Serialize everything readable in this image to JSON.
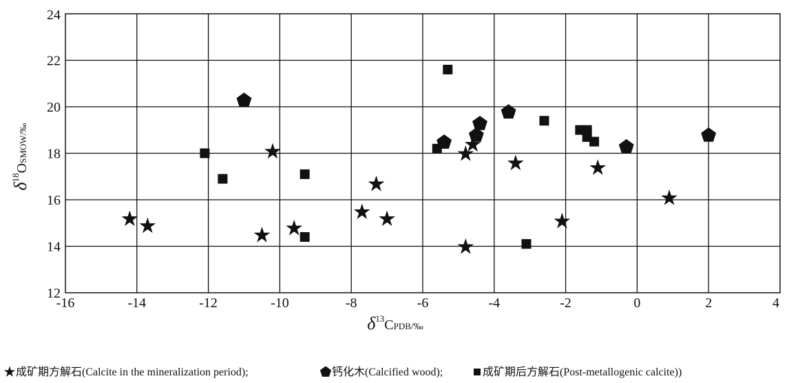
{
  "chart_data": {
    "type": "scatter",
    "x_axis": {
      "min": -16,
      "max": 4,
      "ticks": [
        -16,
        -14,
        -12,
        -10,
        -8,
        -6,
        -4,
        -2,
        0,
        2,
        4
      ],
      "tick_labels": [
        "-16",
        "-14",
        "-12",
        "-10",
        "-8",
        "-6",
        "-4",
        "-2",
        "0",
        "2",
        "4"
      ],
      "label_symbol": "δ",
      "label_sup": "13",
      "label_main": "C",
      "label_sub": "PDB",
      "label_suffix": "/‰"
    },
    "y_axis": {
      "min": 12,
      "max": 24,
      "ticks": [
        12,
        14,
        16,
        18,
        20,
        22,
        24
      ],
      "tick_labels": [
        "12",
        "14",
        "16",
        "18",
        "20",
        "22",
        "24"
      ],
      "label_symbol": "δ",
      "label_sup": "18",
      "label_main": "O",
      "label_sub": "SMOW",
      "label_suffix": "/‰"
    },
    "grid": true,
    "series": [
      {
        "name": "成矿期方解石(Calcite in the mineralization period)",
        "marker": "star",
        "color": "#111111",
        "points": [
          [
            -14.2,
            15.2
          ],
          [
            -13.7,
            14.9
          ],
          [
            -10.5,
            14.5
          ],
          [
            -10.2,
            18.1
          ],
          [
            -9.6,
            14.8
          ],
          [
            -7.7,
            15.5
          ],
          [
            -7.3,
            16.7
          ],
          [
            -7.0,
            15.2
          ],
          [
            -4.8,
            18.0
          ],
          [
            -4.8,
            14.0
          ],
          [
            -4.6,
            18.4
          ],
          [
            -3.4,
            17.6
          ],
          [
            -2.1,
            15.1
          ],
          [
            -1.1,
            17.4
          ],
          [
            0.9,
            16.1
          ]
        ]
      },
      {
        "name": "钙化木(Calcified wood)",
        "marker": "pentagon",
        "color": "#111111",
        "points": [
          [
            -11.0,
            20.3
          ],
          [
            -5.4,
            18.5
          ],
          [
            -4.5,
            18.8
          ],
          [
            -4.4,
            19.3
          ],
          [
            -3.6,
            19.8
          ],
          [
            -0.3,
            18.3
          ],
          [
            2.0,
            18.8
          ]
        ]
      },
      {
        "name": "成矿期后方解石(Post-metallogenic calcite)",
        "marker": "square",
        "color": "#111111",
        "points": [
          [
            -12.1,
            18.0
          ],
          [
            -11.6,
            16.9
          ],
          [
            -9.3,
            17.1
          ],
          [
            -9.3,
            14.4
          ],
          [
            -5.6,
            18.2
          ],
          [
            -5.3,
            21.6
          ],
          [
            -3.1,
            14.1
          ],
          [
            -2.6,
            19.4
          ],
          [
            -1.6,
            19.0
          ],
          [
            -1.4,
            19.0
          ],
          [
            -1.4,
            18.7
          ],
          [
            -1.2,
            18.5
          ]
        ]
      }
    ],
    "legend": {
      "placement": "bottom",
      "separator": ";",
      "closing": ")"
    }
  }
}
